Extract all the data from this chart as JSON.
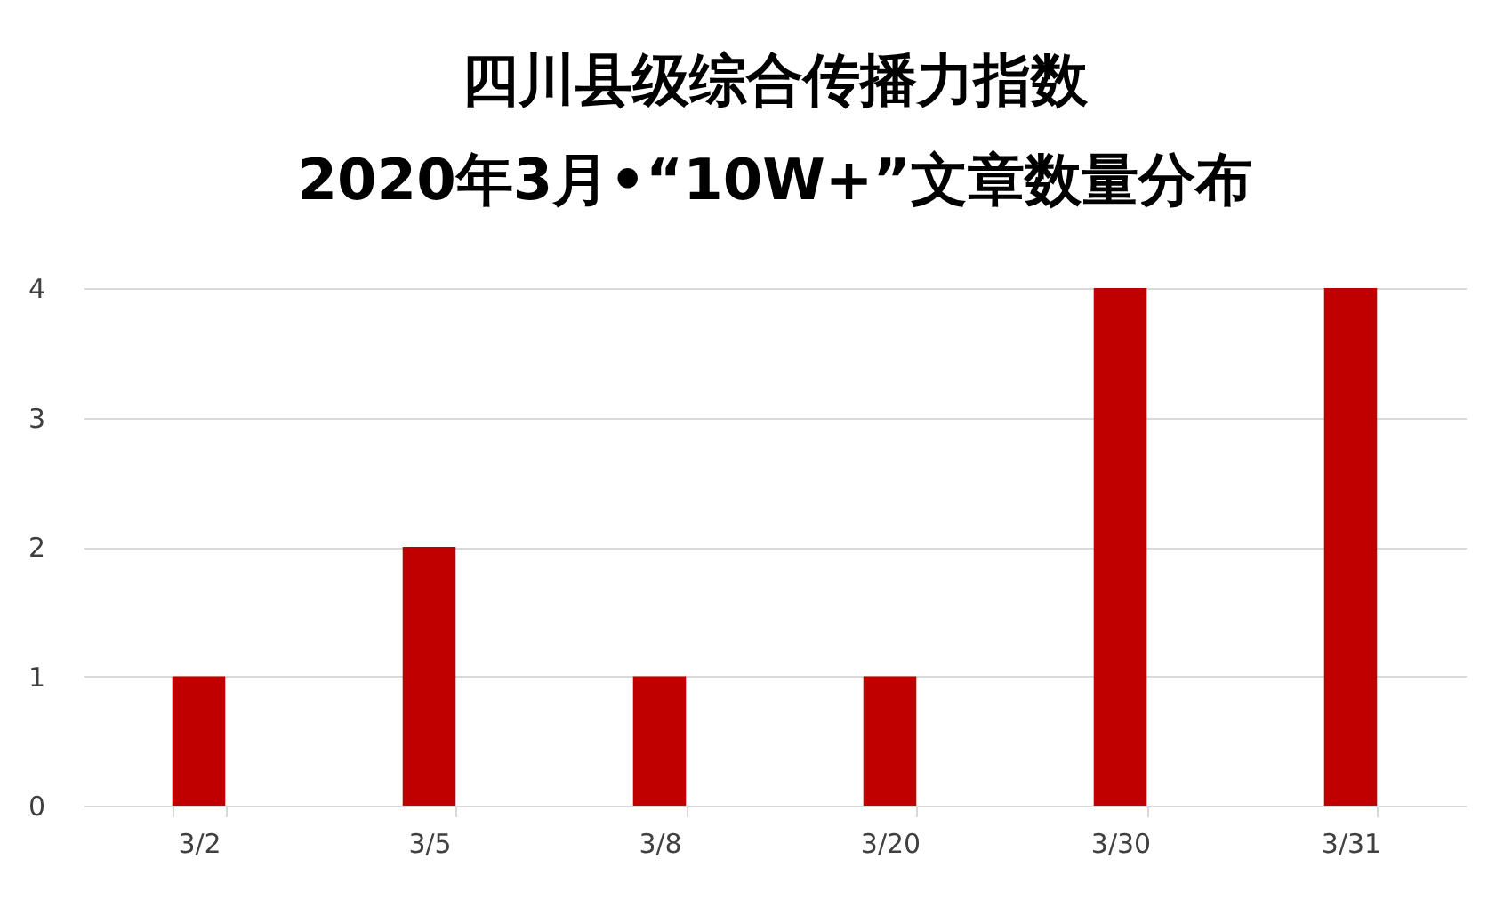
{
  "chart_data": {
    "type": "bar",
    "title": "四川县级综合传播力指数",
    "subtitle": "2020年3月•“10W+”文章数量分布",
    "categories": [
      "3/2",
      "3/5",
      "3/8",
      "3/20",
      "3/30",
      "3/31"
    ],
    "values": [
      1,
      2,
      1,
      1,
      4,
      4
    ],
    "color": "#c00000",
    "ylim": [
      0,
      4
    ],
    "yticks": [
      0,
      1,
      2,
      3,
      4
    ],
    "grid": "y"
  }
}
